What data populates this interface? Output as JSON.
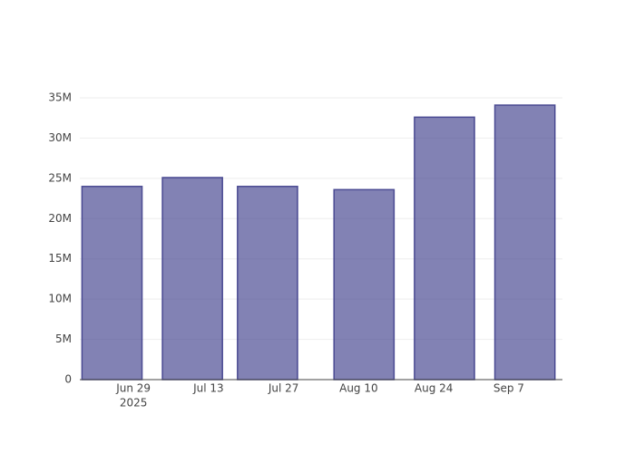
{
  "chart_data": {
    "type": "bar",
    "x": [
      "2025-06-25",
      "2025-07-10",
      "2025-07-24",
      "2025-08-11",
      "2025-08-26",
      "2025-09-10"
    ],
    "values": [
      24000000,
      25100000,
      24000000,
      23600000,
      32600000,
      34100000
    ],
    "color": "#3f3f8c",
    "xlim": [
      "2025-06-19",
      "2025-09-17"
    ],
    "xticks": [
      {
        "value": "2025-06-29",
        "label": "Jun 29"
      },
      {
        "value": "2025-07-13",
        "label": "Jul 13"
      },
      {
        "value": "2025-07-27",
        "label": "Jul 27"
      },
      {
        "value": "2025-08-10",
        "label": "Aug 10"
      },
      {
        "value": "2025-08-24",
        "label": "Aug 24"
      },
      {
        "value": "2025-09-07",
        "label": "Sep 7"
      }
    ],
    "x_year_label": "2025",
    "ylim": [
      0,
      35000000
    ],
    "yticks": [
      0,
      {
        "value": 5000000,
        "label": "5M"
      },
      {
        "value": 10000000,
        "label": "10M"
      },
      {
        "value": 15000000,
        "label": "15M"
      },
      {
        "value": 20000000,
        "label": "20M"
      },
      {
        "value": 25000000,
        "label": "25M"
      },
      {
        "value": 30000000,
        "label": "30M"
      },
      {
        "value": 35000000,
        "label": "35M"
      }
    ],
    "grid": true
  }
}
